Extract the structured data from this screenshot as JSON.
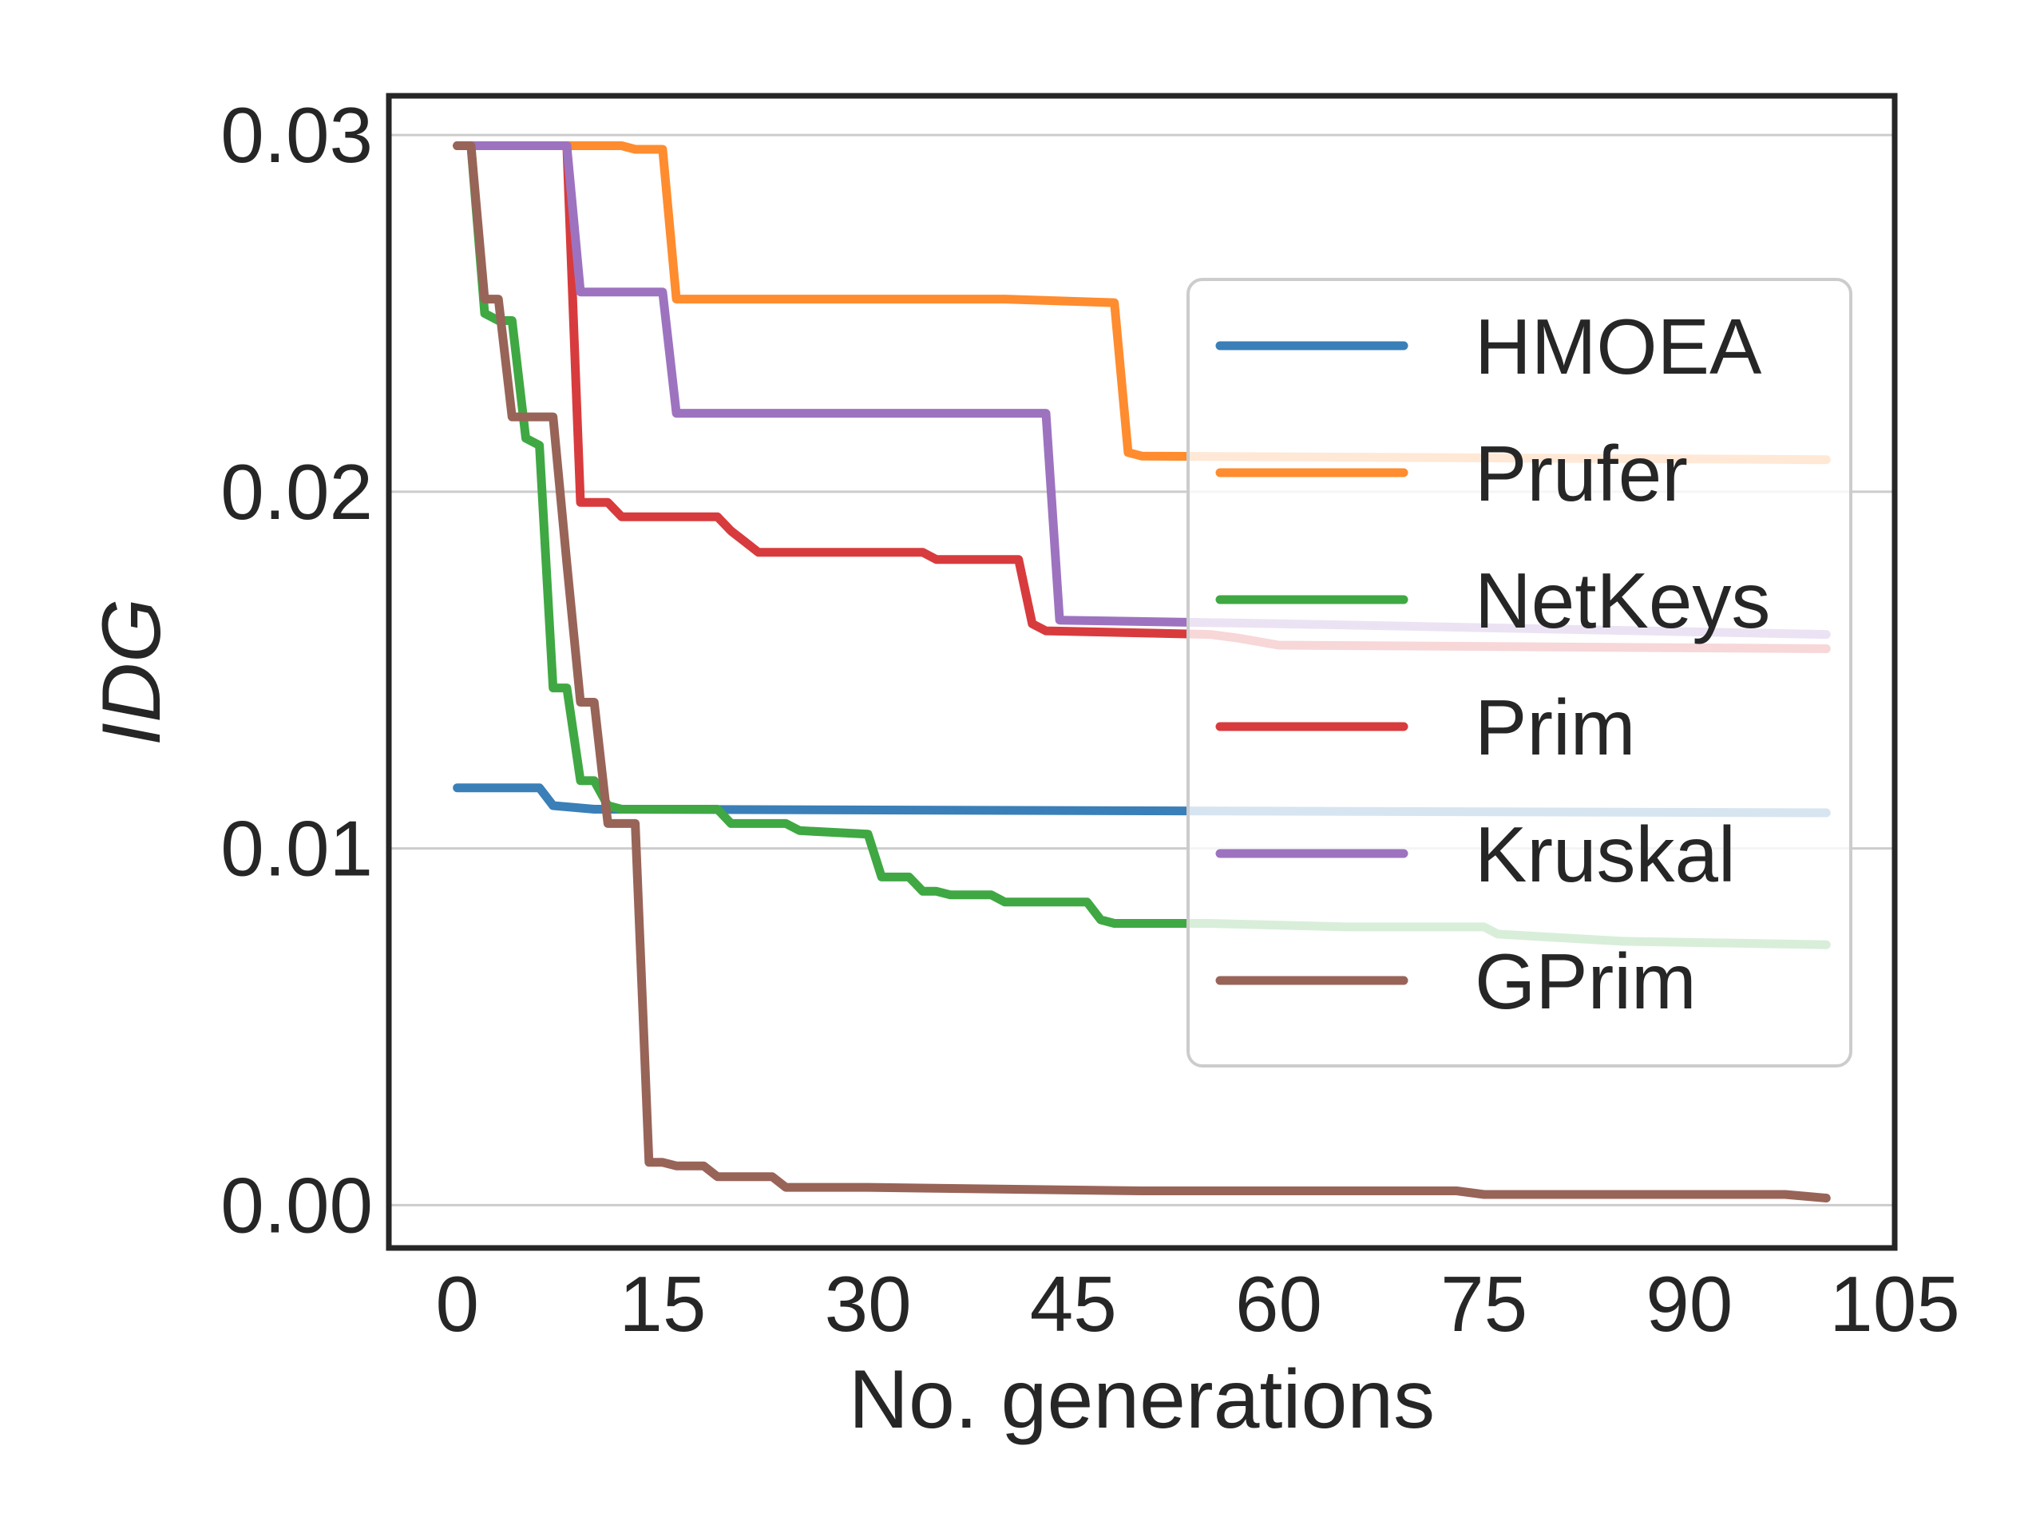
{
  "chart_data": {
    "type": "line",
    "title": "",
    "xlabel": "No. generations",
    "ylabel": "IDG",
    "xlim": [
      -5,
      105
    ],
    "ylim": [
      -0.0012,
      0.0311
    ],
    "xticks": [
      0,
      15,
      30,
      45,
      60,
      75,
      90,
      105
    ],
    "xtick_labels": [
      "0",
      "15",
      "30",
      "45",
      "60",
      "75",
      "90",
      "105"
    ],
    "yticks": [
      0.0,
      0.01,
      0.02,
      0.03
    ],
    "ytick_labels": [
      "0.00",
      "0.01",
      "0.02",
      "0.03"
    ],
    "grid": "horizontal",
    "legend_position": "right",
    "series": [
      {
        "name": "HMOEA",
        "color": "#3a7fb8",
        "x": [
          0,
          6,
          7,
          10,
          100
        ],
        "y": [
          0.0117,
          0.0117,
          0.0112,
          0.0111,
          0.011
        ]
      },
      {
        "name": "Prufer",
        "color": "#ff8c2e",
        "x": [
          0,
          12,
          13,
          15,
          16,
          40,
          48,
          49,
          50,
          100
        ],
        "y": [
          0.0297,
          0.0297,
          0.0296,
          0.0296,
          0.0254,
          0.0254,
          0.0253,
          0.0211,
          0.021,
          0.0209
        ],
        "y_at_first_and_last_step": "0.0297 to 0.0209"
      },
      {
        "name": "NetKeys",
        "color": "#3fa843",
        "x": [
          0,
          1,
          2,
          3,
          4,
          5,
          6,
          7,
          8,
          9,
          10,
          11,
          12,
          14,
          16,
          19,
          20,
          24,
          25,
          30,
          31,
          33,
          34,
          35,
          36,
          39,
          40,
          46,
          47,
          48,
          55,
          65,
          75,
          76,
          85,
          100
        ],
        "y": [
          0.0297,
          0.0297,
          0.025,
          0.0248,
          0.0248,
          0.0215,
          0.0213,
          0.0145,
          0.0145,
          0.0119,
          0.0119,
          0.0112,
          0.0111,
          0.0111,
          0.0111,
          0.0111,
          0.0107,
          0.0107,
          0.0105,
          0.0104,
          0.0092,
          0.0092,
          0.0088,
          0.0088,
          0.0087,
          0.0087,
          0.0085,
          0.0085,
          0.008,
          0.0079,
          0.0079,
          0.0078,
          0.0078,
          0.0076,
          0.0074,
          0.0073
        ]
      },
      {
        "name": "Prim",
        "color": "#d83b3d",
        "x": [
          0,
          8,
          9,
          10,
          11,
          12,
          19,
          20,
          21,
          22,
          34,
          35,
          41,
          42,
          43,
          55,
          57,
          60,
          100
        ],
        "y": [
          0.0297,
          0.0297,
          0.0197,
          0.0197,
          0.0197,
          0.0193,
          0.0193,
          0.0189,
          0.0186,
          0.0183,
          0.0183,
          0.0181,
          0.0181,
          0.0163,
          0.0161,
          0.016,
          0.0159,
          0.0157,
          0.0156
        ]
      },
      {
        "name": "Kruskal",
        "color": "#9d73c0",
        "x": [
          0,
          8,
          9,
          15,
          16,
          43,
          44,
          60,
          100
        ],
        "y": [
          0.0297,
          0.0297,
          0.0256,
          0.0256,
          0.0222,
          0.0222,
          0.0164,
          0.0163,
          0.016
        ]
      },
      {
        "name": "GPrim",
        "color": "#986458",
        "x": [
          0,
          1,
          2,
          3,
          4,
          5,
          6,
          7,
          8,
          9,
          10,
          11,
          12,
          13,
          14,
          15,
          16,
          18,
          19,
          20,
          23,
          24,
          30,
          50,
          60,
          73,
          75,
          97,
          100
        ],
        "y": [
          0.0297,
          0.0297,
          0.0254,
          0.0254,
          0.0221,
          0.0221,
          0.0221,
          0.0221,
          0.018,
          0.0141,
          0.0141,
          0.0107,
          0.0107,
          0.0107,
          0.0012,
          0.0012,
          0.0011,
          0.0011,
          0.0008,
          0.0008,
          0.0008,
          0.0005,
          0.0005,
          0.0004,
          0.0004,
          0.0004,
          0.0003,
          0.0003,
          0.0002
        ]
      }
    ]
  }
}
